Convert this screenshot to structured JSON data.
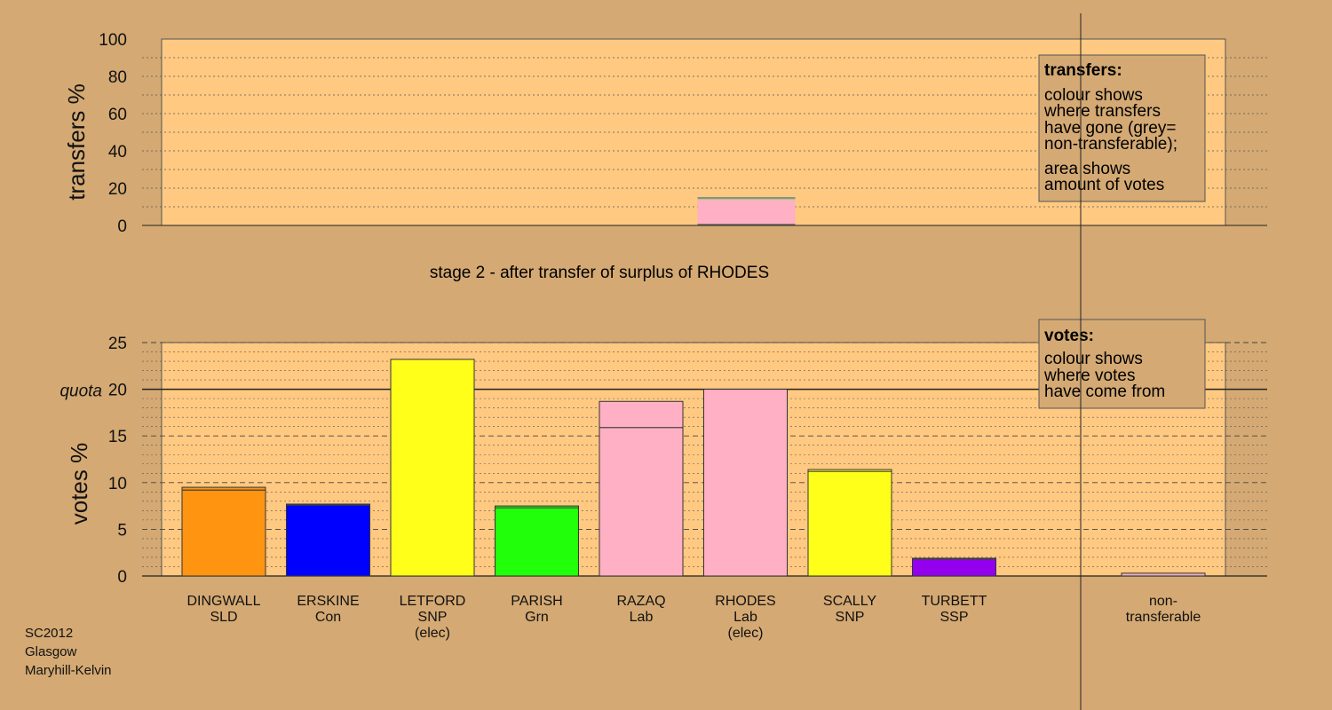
{
  "chart_data": [
    {
      "id": "transfers",
      "type": "bar",
      "ylabel": "transfers %",
      "ylim": [
        0,
        100
      ],
      "yticks": [
        0,
        20,
        40,
        60,
        80,
        100
      ],
      "grid": true,
      "legend": {
        "title": "transfers:",
        "lines": [
          "colour shows",
          "where transfers",
          "have gone (grey=",
          "non-transferable);",
          "area shows",
          "amount of votes"
        ],
        "position": "top-right"
      },
      "bars": [
        {
          "category": "RHODES",
          "segments": [
            {
              "to": "RAZAQ",
              "value": 0.8,
              "color": "#4a4a4a"
            },
            {
              "to": "RAZAQ",
              "value": 12.7,
              "color": "#ffb0c4"
            },
            {
              "to": "SCALLY",
              "value": 0.6,
              "color": "#d8c878"
            },
            {
              "to": "non-transferable",
              "value": 0.7,
              "color": "#9aa8a8"
            }
          ]
        }
      ]
    },
    {
      "id": "votes",
      "type": "bar",
      "title": "stage 2 - after transfer of surplus of RHODES",
      "ylabel": "votes %",
      "ylim": [
        0,
        25
      ],
      "yticks": [
        0,
        5,
        10,
        15,
        20,
        25
      ],
      "quota": {
        "value": 20,
        "label": "quota"
      },
      "grid": true,
      "legend": {
        "title": "votes:",
        "lines": [
          "colour shows",
          "where votes",
          "have come from"
        ],
        "position": "top-right"
      },
      "categories": [
        {
          "name": "DINGWALL",
          "party": "SLD",
          "status": "",
          "base": 9.2,
          "transfer": 0.3,
          "color": "#ff9410"
        },
        {
          "name": "ERSKINE",
          "party": "Con",
          "status": "",
          "base": 7.6,
          "transfer": 0.1,
          "color": "#0000ff"
        },
        {
          "name": "LETFORD",
          "party": "SNP",
          "status": "(elec)",
          "base": 23.2,
          "transfer": 0.0,
          "color": "#ffff1a"
        },
        {
          "name": "PARISH",
          "party": "Grn",
          "status": "",
          "base": 7.3,
          "transfer": 0.2,
          "color": "#22ff0a"
        },
        {
          "name": "RAZAQ",
          "party": "Lab",
          "status": "",
          "base": 15.9,
          "transfer": 2.8,
          "color": "#ffb0c4"
        },
        {
          "name": "RHODES",
          "party": "Lab",
          "status": "(elec)",
          "base": 20.0,
          "transfer": 0.0,
          "color": "#ffb0c4"
        },
        {
          "name": "SCALLY",
          "party": "SNP",
          "status": "",
          "base": 11.2,
          "transfer": 0.2,
          "color": "#ffff1a"
        },
        {
          "name": "TURBETT",
          "party": "SSP",
          "status": "",
          "base": 1.8,
          "transfer": 0.1,
          "color": "#9300ee"
        }
      ],
      "nontransferable": {
        "label_line1": "non-",
        "label_line2": "transferable",
        "value": 0.3,
        "color": "#e8b0b8"
      }
    }
  ],
  "footer": {
    "line1": "SC2012",
    "line2": "Glasgow",
    "line3": "Maryhill-Kelvin"
  }
}
